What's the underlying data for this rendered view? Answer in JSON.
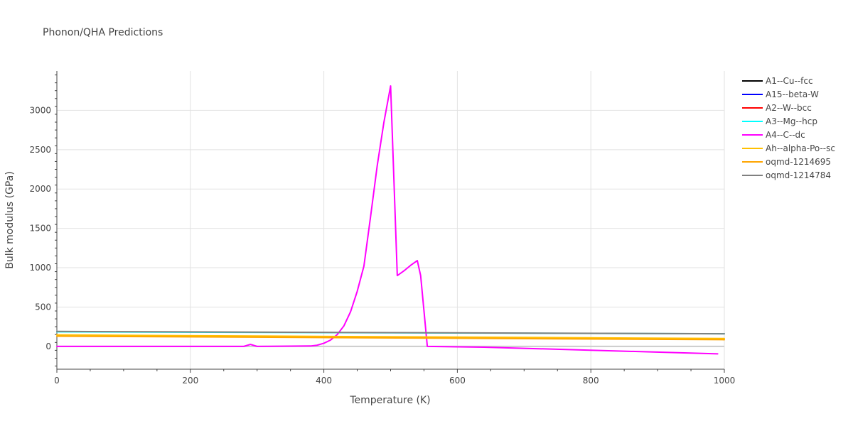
{
  "chart_data": {
    "type": "line",
    "title": "Phonon/QHA Predictions",
    "xlabel": "Temperature (K)",
    "ylabel": "Bulk modulus (GPa)",
    "xlim": [
      0,
      1000
    ],
    "ylim": [
      -290,
      3500
    ],
    "x_ticks": [
      0,
      200,
      400,
      600,
      800,
      1000
    ],
    "y_ticks": [
      0,
      500,
      1000,
      1500,
      2000,
      2500,
      3000
    ],
    "grid": true,
    "legend_position": "right",
    "series": [
      {
        "name": "A1--Cu--fcc",
        "color": "#000000",
        "x": [
          0,
          990
        ],
        "y": [
          null,
          null
        ]
      },
      {
        "name": "A15--beta-W",
        "color": "#0000ff",
        "x": [
          0,
          990
        ],
        "y": [
          null,
          null
        ]
      },
      {
        "name": "A2--W--bcc",
        "color": "#ff0000",
        "x": [
          0,
          990
        ],
        "y": [
          null,
          null
        ]
      },
      {
        "name": "A3--Mg--hcp",
        "color": "#00ffff",
        "x": [
          0,
          1000
        ],
        "y": [
          185,
          160
        ]
      },
      {
        "name": "A4--C--dc",
        "color": "#ff00ff",
        "x": [
          0,
          280,
          290,
          300,
          380,
          390,
          400,
          410,
          420,
          430,
          440,
          450,
          460,
          470,
          480,
          490,
          500,
          510,
          520,
          530,
          540,
          545,
          555,
          640,
          990
        ],
        "y": [
          0,
          0,
          25,
          0,
          5,
          15,
          40,
          80,
          150,
          260,
          440,
          700,
          1020,
          1650,
          2300,
          2850,
          3310,
          900,
          960,
          1030,
          1090,
          900,
          0,
          -10,
          -95
        ]
      },
      {
        "name": "Ah--alpha-Po--sc",
        "color": "#ffc000",
        "x": [
          0,
          1000
        ],
        "y": [
          145,
          100
        ]
      },
      {
        "name": "oqmd-1214695",
        "color": "#ffa500",
        "x": [
          0,
          1000
        ],
        "y": [
          130,
          85
        ]
      },
      {
        "name": "oqmd-1214784",
        "color": "#808080",
        "x": [
          0,
          1000
        ],
        "y": [
          190,
          160
        ]
      }
    ]
  }
}
